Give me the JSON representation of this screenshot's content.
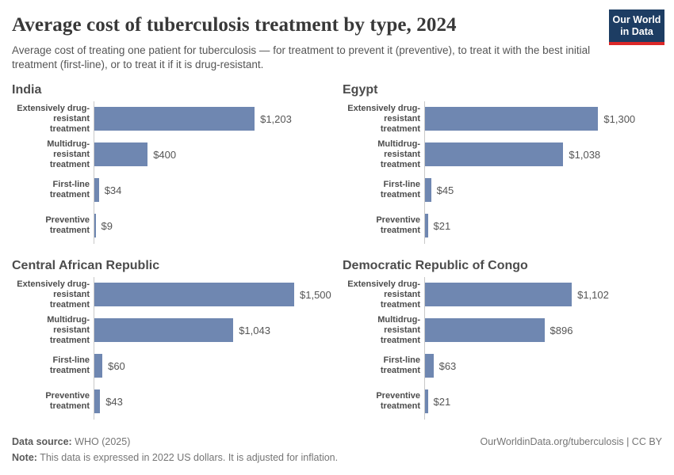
{
  "header": {
    "title": "Average cost of tuberculosis treatment by type, 2024",
    "subtitle": "Average cost of treating one patient for tuberculosis — for treatment to prevent it (preventive), to treat it with the best initial treatment (first-line), or to treat it if it is drug-resistant.",
    "logo": {
      "line1": "Our World",
      "line2": "in Data"
    }
  },
  "chart_data": {
    "type": "bar",
    "orientation": "horizontal",
    "unit": "2022 US dollars",
    "title": "Average cost of tuberculosis treatment by type, 2024",
    "categories": [
      "Extensively drug-resistant treatment",
      "Multidrug-resistant treatment",
      "First-line treatment",
      "Preventive treatment"
    ],
    "xlim": [
      0,
      1500
    ],
    "grid": "off",
    "legend": "none",
    "facets": [
      {
        "name": "India",
        "values": [
          1203,
          400,
          34,
          9
        ],
        "value_labels": [
          "$1,203",
          "$400",
          "$34",
          "$9"
        ]
      },
      {
        "name": "Egypt",
        "values": [
          1300,
          1038,
          45,
          21
        ],
        "value_labels": [
          "$1,300",
          "$1,038",
          "$45",
          "$21"
        ]
      },
      {
        "name": "Central African Republic",
        "values": [
          1500,
          1043,
          60,
          43
        ],
        "value_labels": [
          "$1,500",
          "$1,043",
          "$60",
          "$43"
        ]
      },
      {
        "name": "Democratic Republic of Congo",
        "values": [
          1102,
          896,
          63,
          21
        ],
        "value_labels": [
          "$1,102",
          "$896",
          "$63",
          "$21"
        ]
      }
    ],
    "bar_color": "#6f87b1",
    "axis_line_color": "#c8c8c8"
  },
  "footer": {
    "source_label": "Data source:",
    "source_text": " WHO (2025)",
    "note_label": "Note:",
    "note_text": " This data is expressed in 2022 US dollars. It is adjusted for inflation.",
    "right_text": "OurWorldinData.org/tuberculosis | CC BY"
  },
  "colors": {
    "bar": "#6f87b1",
    "logo_background": "#1d3d63",
    "logo_accent": "#dc2828",
    "title_text": "#383838",
    "body_text": "#555555"
  }
}
